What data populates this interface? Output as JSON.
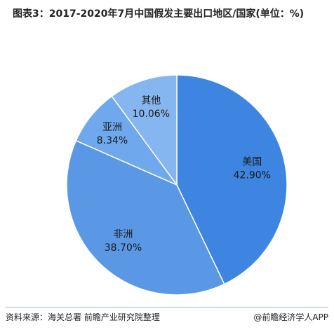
{
  "title": "图表3：2017-2020年7月中国假发主要出口地区/国家(单位：%)",
  "chart_data": {
    "type": "pie",
    "title": "图表3：2017-2020年7月中国假发主要出口地区/国家(单位：%)",
    "slices": [
      {
        "label": "美国",
        "value": 42.9,
        "display": "42.90%",
        "color": "#3d85e0"
      },
      {
        "label": "非洲",
        "value": 38.7,
        "display": "38.70%",
        "color": "#5a98e6"
      },
      {
        "label": "亚洲",
        "value": 8.34,
        "display": "8.34%",
        "color": "#6fa8ec"
      },
      {
        "label": "其他",
        "value": 10.06,
        "display": "10.06%",
        "color": "#86b6f0"
      }
    ],
    "start": "12 o'clock",
    "direction": "clockwise"
  },
  "footer": {
    "source": "资料来源：海关总署 前瞻产业研究院整理",
    "brand": "@前瞻经济学人APP"
  }
}
